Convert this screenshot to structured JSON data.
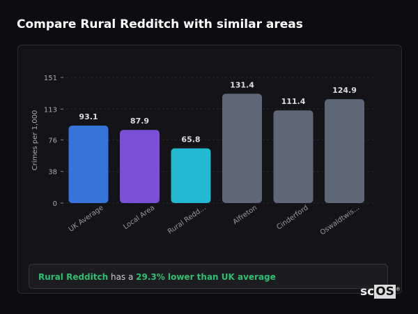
{
  "title": "Compare Rural Redditch with similar areas",
  "chart_data": {
    "type": "bar",
    "categories": [
      "UK Average",
      "Local Area",
      "Rural Redd...",
      "Alfreton",
      "Cinderford",
      "Oswaldtwis..."
    ],
    "values": [
      93.1,
      87.9,
      65.8,
      131.4,
      111.4,
      124.9
    ],
    "colors": [
      "#3575d9",
      "#7b4fd6",
      "#22b8cf",
      "#5d6778",
      "#5d6778",
      "#5d6778"
    ],
    "ylabel": "Crimes per 1,000",
    "yticks": [
      0,
      38,
      76,
      113,
      151
    ],
    "ylim": [
      0,
      151
    ],
    "grid": true
  },
  "summary": {
    "area": "Rural Redditch",
    "mid": " has a ",
    "highlight": "29.3% lower than UK average"
  },
  "logo": {
    "text1": "sc",
    "text2": "OS",
    "reg": "®"
  }
}
